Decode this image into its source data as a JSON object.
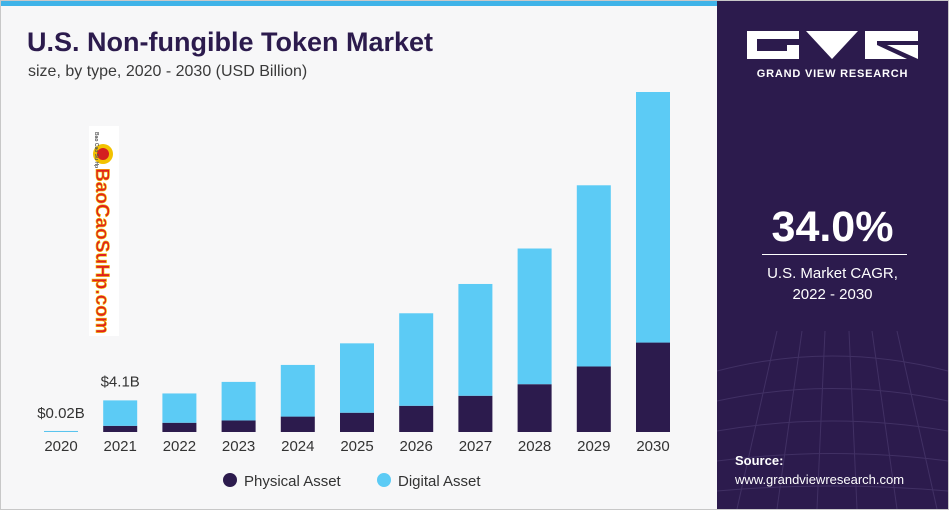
{
  "header": {
    "title": "U.S. Non-fungible Token Market",
    "subtitle": "size, by type, 2020 - 2030 (USD Billion)"
  },
  "watermark": {
    "text": "BaoCaoSuHp.com",
    "tagline": "Bao Cao Su Hp"
  },
  "chart_data": {
    "type": "bar",
    "stacked": true,
    "categories": [
      "2020",
      "2021",
      "2022",
      "2023",
      "2024",
      "2025",
      "2026",
      "2027",
      "2028",
      "2029",
      "2030"
    ],
    "series": [
      {
        "name": "Physical Asset",
        "color": "#2c1b4d",
        "values": [
          0.005,
          0.8,
          1.2,
          1.5,
          2.0,
          2.5,
          3.4,
          4.7,
          6.2,
          8.5,
          11.6
        ]
      },
      {
        "name": "Digital Asset",
        "color": "#5ccbf5",
        "values": [
          0.015,
          3.3,
          3.8,
          5.0,
          6.7,
          9.0,
          12.0,
          14.5,
          17.6,
          23.5,
          32.5
        ]
      }
    ],
    "annotations": [
      {
        "category": "2020",
        "label": "$0.02B"
      },
      {
        "category": "2021",
        "label": "$4.1B"
      }
    ],
    "ylim": [
      0,
      44.1
    ],
    "grid": false,
    "legend": "bottom-center"
  },
  "sidebar": {
    "brand": "GRAND VIEW RESEARCH",
    "cagr_value": "34.0%",
    "cagr_label_line1": "U.S. Market CAGR,",
    "cagr_label_line2": "2022 - 2030",
    "source_label": "Source:",
    "source_url": "www.grandviewresearch.com",
    "logo_icon": "gvr-logo-icon"
  },
  "colors": {
    "navy": "#2c1b4d",
    "sky": "#5ccbf5",
    "accent_bar": "#3fb3e8"
  }
}
